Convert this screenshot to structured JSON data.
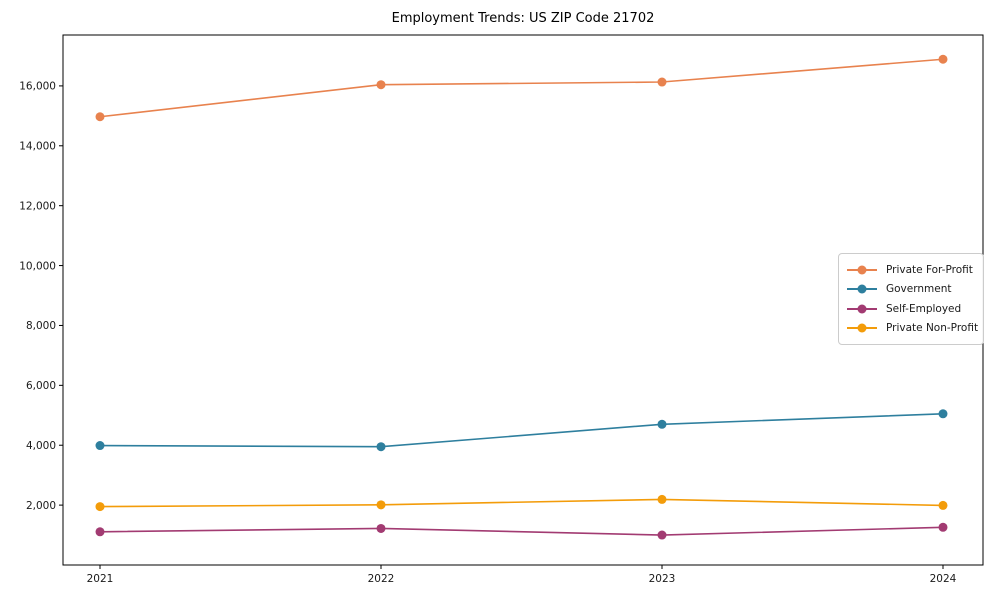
{
  "chart_data": {
    "type": "line",
    "title": "Employment Trends: US ZIP Code 21702",
    "xlabel": "",
    "ylabel": "",
    "x": [
      "2021",
      "2022",
      "2023",
      "2024"
    ],
    "series": [
      {
        "name": "Private For-Profit",
        "color": "#e8824e",
        "values": [
          14970,
          16040,
          16130,
          16890
        ]
      },
      {
        "name": "Government",
        "color": "#2e7f9e",
        "values": [
          3990,
          3950,
          4700,
          5050
        ]
      },
      {
        "name": "Self-Employed",
        "color": "#a23b72",
        "values": [
          1110,
          1220,
          1000,
          1260
        ]
      },
      {
        "name": "Private Non-Profit",
        "color": "#f39c0a",
        "values": [
          1950,
          2010,
          2190,
          1990
        ]
      }
    ],
    "ylim": [
      0,
      17700
    ],
    "y_ticks": [
      2000,
      4000,
      6000,
      8000,
      10000,
      12000,
      14000,
      16000
    ],
    "grid": false,
    "legend_position": "center-right",
    "axis_color": "#000000",
    "tick_label_color": "#1a1a1a"
  }
}
